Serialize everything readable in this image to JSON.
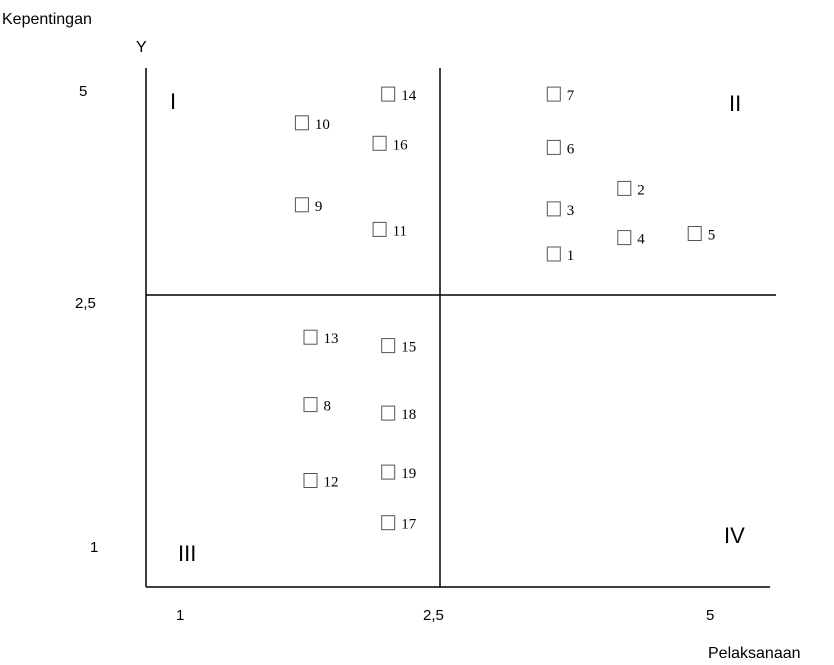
{
  "chart_data": {
    "type": "scatter",
    "title": "",
    "xlabel": "Pelaksanaan",
    "ylabel": "Kepentingan",
    "y_axis_letter": "Y",
    "x_ticks": [
      "1",
      "2,5",
      "5"
    ],
    "y_ticks": [
      "5",
      "2,5",
      "1"
    ],
    "quadrants": [
      "I",
      "II",
      "III",
      "IV"
    ],
    "points": [
      {
        "label": "1",
        "x": 3.55,
        "y": 3.0
      },
      {
        "label": "2",
        "x": 4.2,
        "y": 3.8
      },
      {
        "label": "3",
        "x": 3.55,
        "y": 3.55
      },
      {
        "label": "4",
        "x": 4.2,
        "y": 3.2
      },
      {
        "label": "5",
        "x": 4.85,
        "y": 3.25
      },
      {
        "label": "6",
        "x": 3.55,
        "y": 4.3
      },
      {
        "label": "7",
        "x": 3.55,
        "y": 4.95
      },
      {
        "label": "8",
        "x": 1.75,
        "y": 1.85
      },
      {
        "label": "9",
        "x": 1.7,
        "y": 3.6
      },
      {
        "label": "10",
        "x": 1.7,
        "y": 4.6
      },
      {
        "label": "11",
        "x": 2.15,
        "y": 3.3
      },
      {
        "label": "12",
        "x": 1.75,
        "y": 1.4
      },
      {
        "label": "13",
        "x": 1.75,
        "y": 2.25
      },
      {
        "label": "14",
        "x": 2.2,
        "y": 4.95
      },
      {
        "label": "15",
        "x": 2.2,
        "y": 2.2
      },
      {
        "label": "16",
        "x": 2.15,
        "y": 4.35
      },
      {
        "label": "17",
        "x": 2.2,
        "y": 1.15
      },
      {
        "label": "18",
        "x": 2.2,
        "y": 1.8
      },
      {
        "label": "19",
        "x": 2.2,
        "y": 1.45
      }
    ],
    "divider_x": 2.5,
    "divider_y": 2.5,
    "grid": false,
    "legend": "none"
  }
}
